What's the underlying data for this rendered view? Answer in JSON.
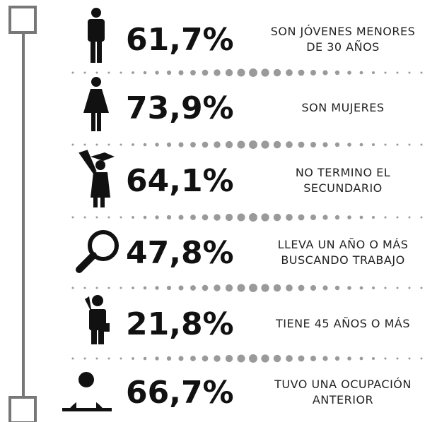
{
  "rows": [
    {
      "value": "61,7%",
      "lines": [
        "SON JÓVENES MENORES",
        "DE 30 AÑOS"
      ]
    },
    {
      "value": "73,9%",
      "lines": [
        "SON MUJERES"
      ]
    },
    {
      "value": "64,1%",
      "lines": [
        "NO TERMINO EL",
        "SECUNDARIO"
      ]
    },
    {
      "value": "47,8%",
      "lines": [
        "LLEVA UN AÑO O MÁS",
        "BUSCANDO TRABAJO"
      ]
    },
    {
      "value": "21,8%",
      "lines": [
        "TIENE 45 AÑOS O MÁS"
      ]
    },
    {
      "value": "66,7%",
      "lines": [
        "TUVO UNA OCUPACIÓN",
        "ANTERIOR"
      ]
    }
  ]
}
